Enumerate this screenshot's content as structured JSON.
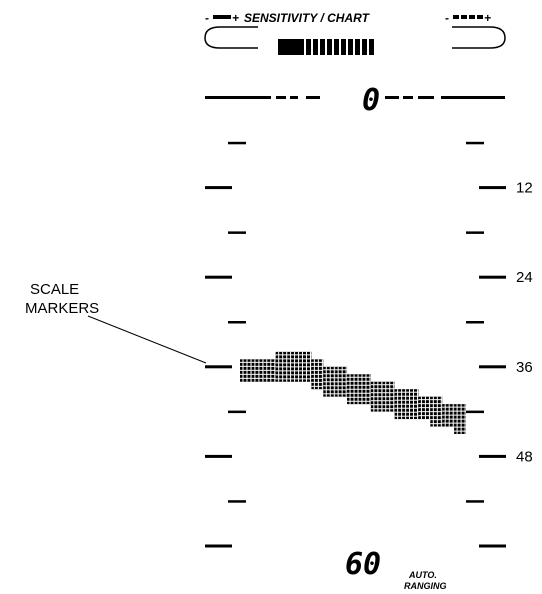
{
  "header": {
    "title": "SENSITIVITY / CHART",
    "minus": "-",
    "plus": "+"
  },
  "display": {
    "top_value": "0",
    "bottom_value": "60",
    "auto_ranging": [
      "AUTO.",
      "RANGING"
    ]
  },
  "callout": {
    "lines": [
      "SCALE",
      "MARKERS"
    ]
  },
  "scale": {
    "labels": [
      "12",
      "24",
      "36",
      "48"
    ]
  },
  "chart_data": {
    "type": "area",
    "title": "SENSITIVITY / CHART",
    "ylim": [
      0,
      60
    ],
    "y_ticks": [
      12,
      24,
      36,
      48
    ],
    "y_inverted": true,
    "x": [
      0,
      1,
      2,
      3,
      4,
      5,
      6,
      7,
      8,
      9,
      10,
      11,
      12,
      13,
      14,
      15,
      16,
      17,
      18
    ],
    "series": [
      {
        "top": [
          35,
          35,
          35,
          34,
          34,
          34,
          35,
          36,
          36,
          37,
          37,
          38,
          38,
          39,
          39,
          40,
          40,
          41,
          41
        ],
        "bottom": [
          38,
          38,
          38,
          38,
          38,
          38,
          39,
          40,
          40,
          41,
          41,
          42,
          42,
          43,
          43,
          43,
          44,
          44,
          45
        ]
      }
    ]
  }
}
